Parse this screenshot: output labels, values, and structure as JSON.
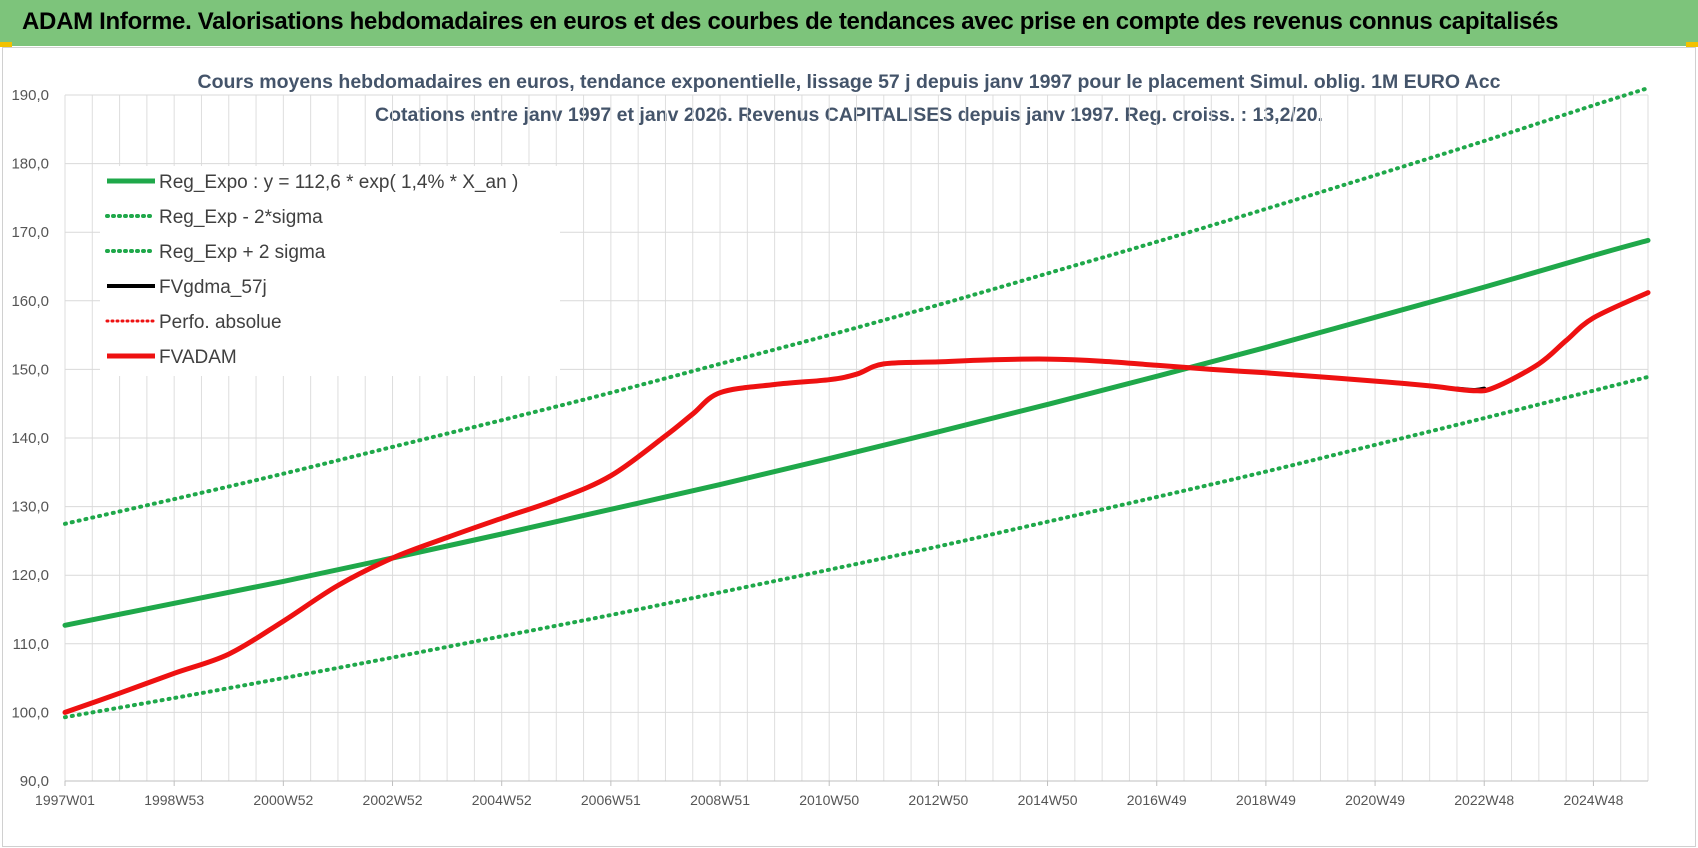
{
  "header": {
    "title": "ADAM Informe. Valorisations hebdomadaires en euros et des courbes de tendances avec prise en compte des revenus connus capitalisés"
  },
  "colors": {
    "header_bg": "#7dc47b",
    "green": "#1fa84a",
    "red": "#ee1111",
    "black": "#000000",
    "title_text": "#44546a",
    "grid": "#d9d9d9"
  },
  "chart_data": {
    "type": "line",
    "title": "Cours moyens hebdomadaires en euros, tendance exponentielle, lissage 57 j depuis janv 1997 pour le placement Simul. oblig. 1M EURO Acc",
    "subtitle": "Cotations entre janv 1997 et janv 2026. Revenus CAPITALISES depuis janv 1997. Reg. croiss. : 13,2/20.",
    "xlabel": "",
    "ylabel": "",
    "xlim": [
      1997.0,
      2026.0
    ],
    "ylim": [
      90,
      190
    ],
    "grid": true,
    "legend_position": "top-left",
    "y_ticks": [
      "90,0",
      "100,0",
      "110,0",
      "120,0",
      "130,0",
      "140,0",
      "150,0",
      "160,0",
      "170,0",
      "180,0",
      "190,0"
    ],
    "x_ticks": [
      "1997W01",
      "1998W53",
      "2000W52",
      "2002W52",
      "2004W52",
      "2006W51",
      "2008W51",
      "2010W50",
      "2012W50",
      "2014W50",
      "2016W49",
      "2018W49",
      "2020W49",
      "2022W48",
      "2024W48"
    ],
    "x_tick_years": [
      1997.0,
      1999.0,
      2001.0,
      2003.0,
      2005.0,
      2007.0,
      2009.0,
      2011.0,
      2013.0,
      2015.0,
      2017.0,
      2019.0,
      2021.0,
      2023.0,
      2025.0
    ],
    "series": [
      {
        "name": "Reg_Expo : y = 112,6 * exp( 1,4% *  X_an )",
        "style": "solid-green",
        "x": [
          1997,
          1999,
          2001,
          2003,
          2005,
          2007,
          2009,
          2011,
          2013,
          2015,
          2017,
          2019,
          2021,
          2023,
          2025,
          2026
        ],
        "values": [
          112.7,
          115.9,
          119.1,
          122.5,
          126.0,
          129.6,
          133.2,
          137.0,
          140.9,
          144.9,
          149.0,
          153.2,
          157.6,
          162.0,
          166.6,
          168.8
        ]
      },
      {
        "name": "Reg_Exp - 2*sigma",
        "style": "dotted-green",
        "x": [
          1997,
          1999,
          2001,
          2003,
          2005,
          2007,
          2009,
          2011,
          2013,
          2015,
          2017,
          2019,
          2021,
          2023,
          2025,
          2026
        ],
        "values": [
          99.3,
          102.1,
          105.0,
          108.0,
          111.1,
          114.2,
          117.5,
          120.8,
          124.2,
          127.8,
          131.4,
          135.1,
          139.0,
          142.9,
          146.9,
          148.9
        ]
      },
      {
        "name": "Reg_Exp + 2 sigma",
        "style": "dotted-green",
        "x": [
          1997,
          1999,
          2001,
          2003,
          2005,
          2007,
          2009,
          2011,
          2013,
          2015,
          2017,
          2019,
          2021,
          2023,
          2025,
          2026
        ],
        "values": [
          127.5,
          131.1,
          134.8,
          138.7,
          142.6,
          146.6,
          150.8,
          155.0,
          159.4,
          164.0,
          168.6,
          173.4,
          178.3,
          183.3,
          188.5,
          191.0
        ]
      },
      {
        "name": "FVgdma_57j",
        "style": "solid-black",
        "x": [
          2022.5,
          2022.8,
          2023.0
        ],
        "values": [
          147.2,
          147.0,
          147.2
        ]
      },
      {
        "name": "Perfo. absolue",
        "style": "dotted-red",
        "x": [],
        "values": []
      },
      {
        "name": "FVADAM",
        "style": "solid-red",
        "x": [
          1997.0,
          1998.0,
          1999.0,
          2000.0,
          2001.0,
          2002.0,
          2003.0,
          2004.0,
          2005.0,
          2006.0,
          2007.0,
          2008.0,
          2008.5,
          2009.0,
          2010.0,
          2011.0,
          2011.5,
          2012.0,
          2013.0,
          2014.0,
          2015.0,
          2016.0,
          2017.0,
          2018.0,
          2019.0,
          2020.0,
          2021.0,
          2022.0,
          2022.8,
          2023.2,
          2024.0,
          2024.5,
          2025.0,
          2026.0
        ],
        "values": [
          100.0,
          102.8,
          105.7,
          108.5,
          113.3,
          118.5,
          122.5,
          125.5,
          128.3,
          131.0,
          134.5,
          140.3,
          143.5,
          146.6,
          147.8,
          148.5,
          149.3,
          150.8,
          151.1,
          151.4,
          151.5,
          151.2,
          150.6,
          150.0,
          149.5,
          148.9,
          148.3,
          147.6,
          146.9,
          147.4,
          150.8,
          154.2,
          157.5,
          161.2
        ]
      }
    ]
  }
}
